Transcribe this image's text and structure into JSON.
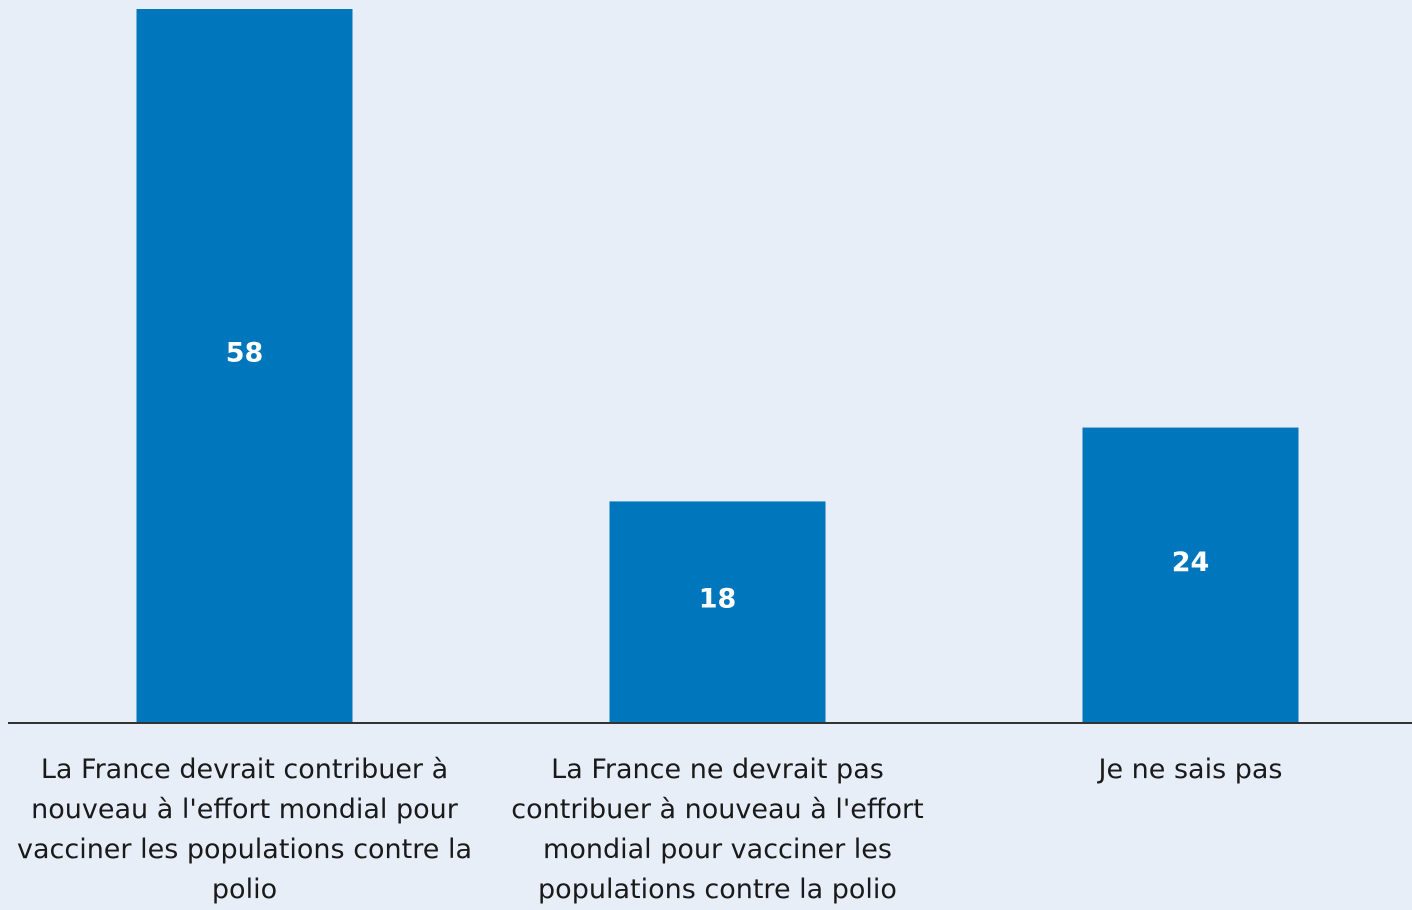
{
  "chart_data": {
    "type": "bar",
    "categories": [
      "La France devrait contribuer à nouveau à l'effort mondial pour vacciner les populations contre la polio",
      "La France ne devrait pas contribuer à nouveau à l'effort mondial pour vacciner les populations contre la polio",
      "Je ne sais pas"
    ],
    "values": [
      58,
      18,
      24
    ],
    "color": "#0077bd"
  }
}
